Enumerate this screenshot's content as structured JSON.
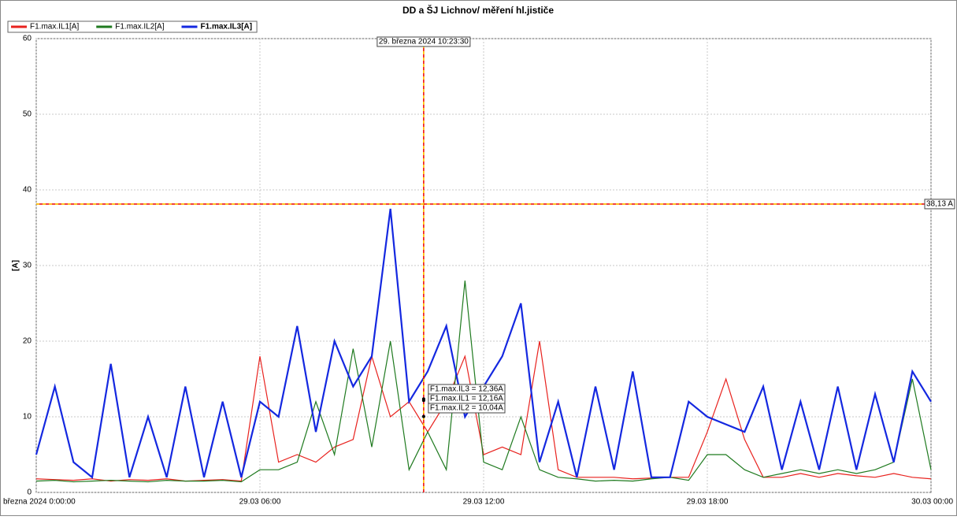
{
  "chart_data": {
    "type": "line",
    "title": "DD a ŠJ Lichnov/ měření hl.jističe",
    "y_label": "[A]",
    "x": [
      0,
      0.5,
      1,
      1.5,
      2,
      2.5,
      3,
      3.5,
      4,
      4.5,
      5,
      5.5,
      6,
      6.5,
      7,
      7.5,
      8,
      8.5,
      9,
      9.5,
      10,
      10.5,
      11,
      11.5,
      12,
      12.5,
      13,
      13.5,
      14,
      14.5,
      15,
      15.5,
      16,
      16.5,
      17,
      17.5,
      18,
      18.5,
      19,
      19.5,
      20,
      20.5,
      21,
      21.5,
      22,
      22.5,
      23,
      23.5,
      24
    ],
    "series": [
      {
        "name": "F1.max.IL1[A]",
        "color": "#e8221e",
        "width": 1.2,
        "values": [
          1.8,
          1.7,
          1.6,
          1.8,
          1.5,
          1.7,
          1.6,
          1.8,
          1.5,
          1.6,
          1.7,
          1.5,
          18,
          4,
          5,
          4,
          6,
          7,
          18,
          10,
          12,
          8,
          12,
          18,
          5,
          6,
          5,
          20,
          3,
          2,
          2,
          2,
          1.8,
          1.9,
          2,
          2,
          8,
          15,
          7,
          2,
          2,
          2.5,
          2,
          2.5,
          2.2,
          2,
          2.5,
          2,
          1.8
        ]
      },
      {
        "name": "F1.max.IL2[A]",
        "color": "#1f7a1f",
        "width": 1.2,
        "values": [
          1.5,
          1.6,
          1.4,
          1.5,
          1.6,
          1.5,
          1.4,
          1.6,
          1.5,
          1.5,
          1.6,
          1.4,
          3,
          3,
          4,
          12,
          5,
          19,
          6,
          20,
          3,
          8,
          3,
          28,
          4,
          3,
          10,
          3,
          2,
          1.8,
          1.5,
          1.6,
          1.5,
          1.8,
          2,
          1.6,
          5,
          5,
          3,
          2,
          2.5,
          3,
          2.5,
          3,
          2.5,
          3,
          4,
          15,
          3
        ]
      },
      {
        "name": "F1.max.IL3[A]",
        "color": "#1428e0",
        "width": 2.2,
        "values": [
          5,
          14,
          4,
          2,
          17,
          2,
          10,
          2,
          14,
          2,
          12,
          2,
          12,
          10,
          22,
          8,
          20,
          14,
          18,
          37.5,
          12,
          16,
          22,
          10,
          14,
          18,
          25,
          4,
          12,
          2,
          14,
          3,
          16,
          2,
          2,
          12,
          10,
          9,
          8,
          14,
          3,
          12,
          3,
          14,
          3,
          13,
          4,
          16,
          12
        ]
      }
    ],
    "xlim": [
      0,
      24
    ],
    "xticks": [
      {
        "value": 0,
        "label": "března 2024 0:00:00"
      },
      {
        "value": 6,
        "label": "29.03 06:00"
      },
      {
        "value": 12,
        "label": "29.03 12:00"
      },
      {
        "value": 18,
        "label": "29.03 18:00"
      },
      {
        "value": 24,
        "label": "30.03 00:00"
      }
    ],
    "ylim": [
      0,
      60
    ],
    "yticks": [
      0,
      10,
      20,
      30,
      40,
      50,
      60
    ],
    "grid": true,
    "cursor_x": {
      "value": 10.3917,
      "label": "29. března 2024 10:23:30"
    },
    "cursor_y": {
      "value": 38.13,
      "label": "38,13 A"
    },
    "readouts": [
      {
        "value": 12.36,
        "label": "F1.max.IL3 = 12,36A"
      },
      {
        "value": 12.16,
        "label": "F1.max.IL1 = 12,16A"
      },
      {
        "value": 10.04,
        "label": "F1.max.IL2 = 10,04A"
      }
    ]
  }
}
